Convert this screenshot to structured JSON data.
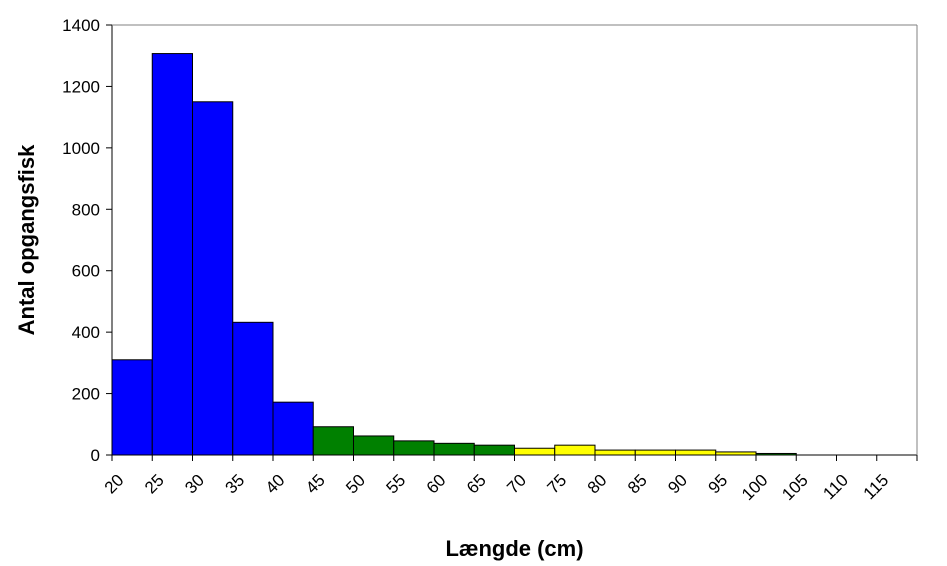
{
  "chart_data": {
    "type": "bar",
    "title": "",
    "xlabel": "Længde (cm)",
    "ylabel": "Antal opgangsfisk",
    "ylim": [
      0,
      1400
    ],
    "yticks": [
      0,
      200,
      400,
      600,
      800,
      1000,
      1200,
      1400
    ],
    "grid": false,
    "categories": [
      "20",
      "25",
      "30",
      "35",
      "40",
      "45",
      "50",
      "55",
      "60",
      "65",
      "70",
      "75",
      "80",
      "85",
      "90",
      "95",
      "100",
      "105",
      "110",
      "115"
    ],
    "values": [
      310,
      1307,
      1150,
      432,
      172,
      92,
      62,
      46,
      38,
      32,
      22,
      32,
      16,
      16,
      16,
      10,
      5,
      0,
      0,
      0
    ],
    "colors": [
      "#0000ff",
      "#0000ff",
      "#0000ff",
      "#0000ff",
      "#0000ff",
      "#008000",
      "#008000",
      "#008000",
      "#008000",
      "#008000",
      "#ffff00",
      "#ffff00",
      "#ffff00",
      "#ffff00",
      "#ffff00",
      "#ffff00",
      "#008000",
      "#008000",
      "#008000",
      "#008000"
    ]
  }
}
